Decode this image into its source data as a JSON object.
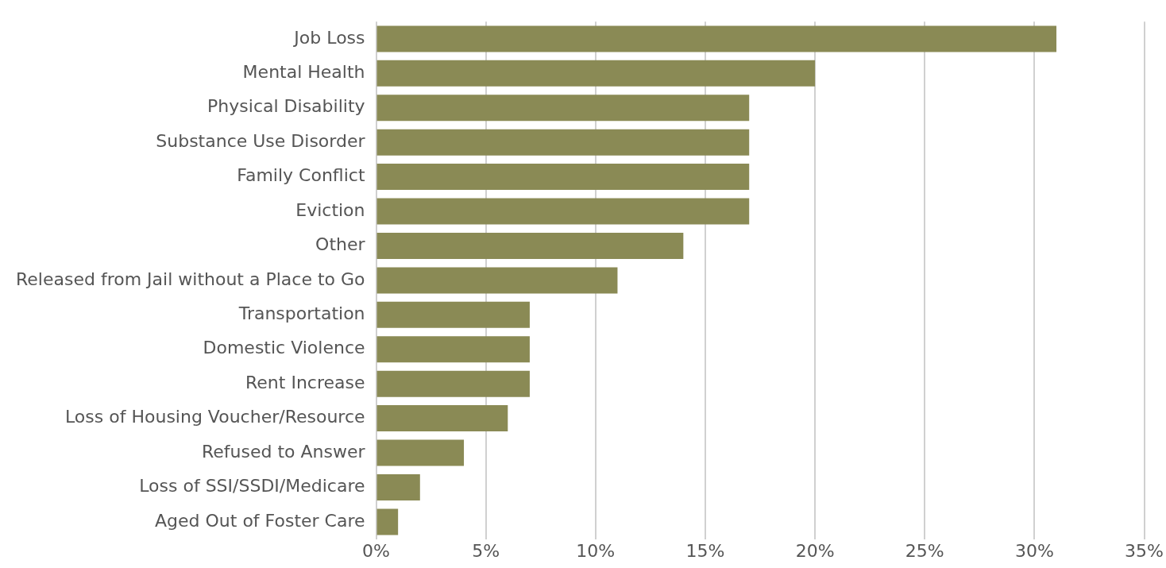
{
  "chart_data": {
    "type": "bar",
    "orientation": "horizontal",
    "categories": [
      "Job Loss",
      "Mental Health",
      "Physical Disability",
      "Substance Use Disorder",
      "Family Conflict",
      "Eviction",
      "Other",
      "Released from Jail without a Place to Go",
      "Transportation",
      "Domestic Violence",
      "Rent Increase",
      "Loss of Housing Voucher/Resource",
      "Refused to Answer",
      "Loss of SSI/SSDI/Medicare",
      "Aged Out of Foster Care"
    ],
    "values": [
      31,
      20,
      17,
      17,
      17,
      17,
      14,
      11,
      7,
      7,
      7,
      6,
      4,
      2,
      1
    ],
    "color": "#8a8a55",
    "xlim": [
      0,
      35
    ],
    "xticks": [
      {
        "value": 0,
        "label": "0%"
      },
      {
        "value": 5,
        "label": "5%"
      },
      {
        "value": 10,
        "label": "10%"
      },
      {
        "value": 15,
        "label": "15%"
      },
      {
        "value": 20,
        "label": "20%"
      },
      {
        "value": 25,
        "label": "25%"
      },
      {
        "value": 30,
        "label": "30%"
      },
      {
        "value": 35,
        "label": "35%"
      }
    ],
    "grid": "x",
    "legend": false
  }
}
